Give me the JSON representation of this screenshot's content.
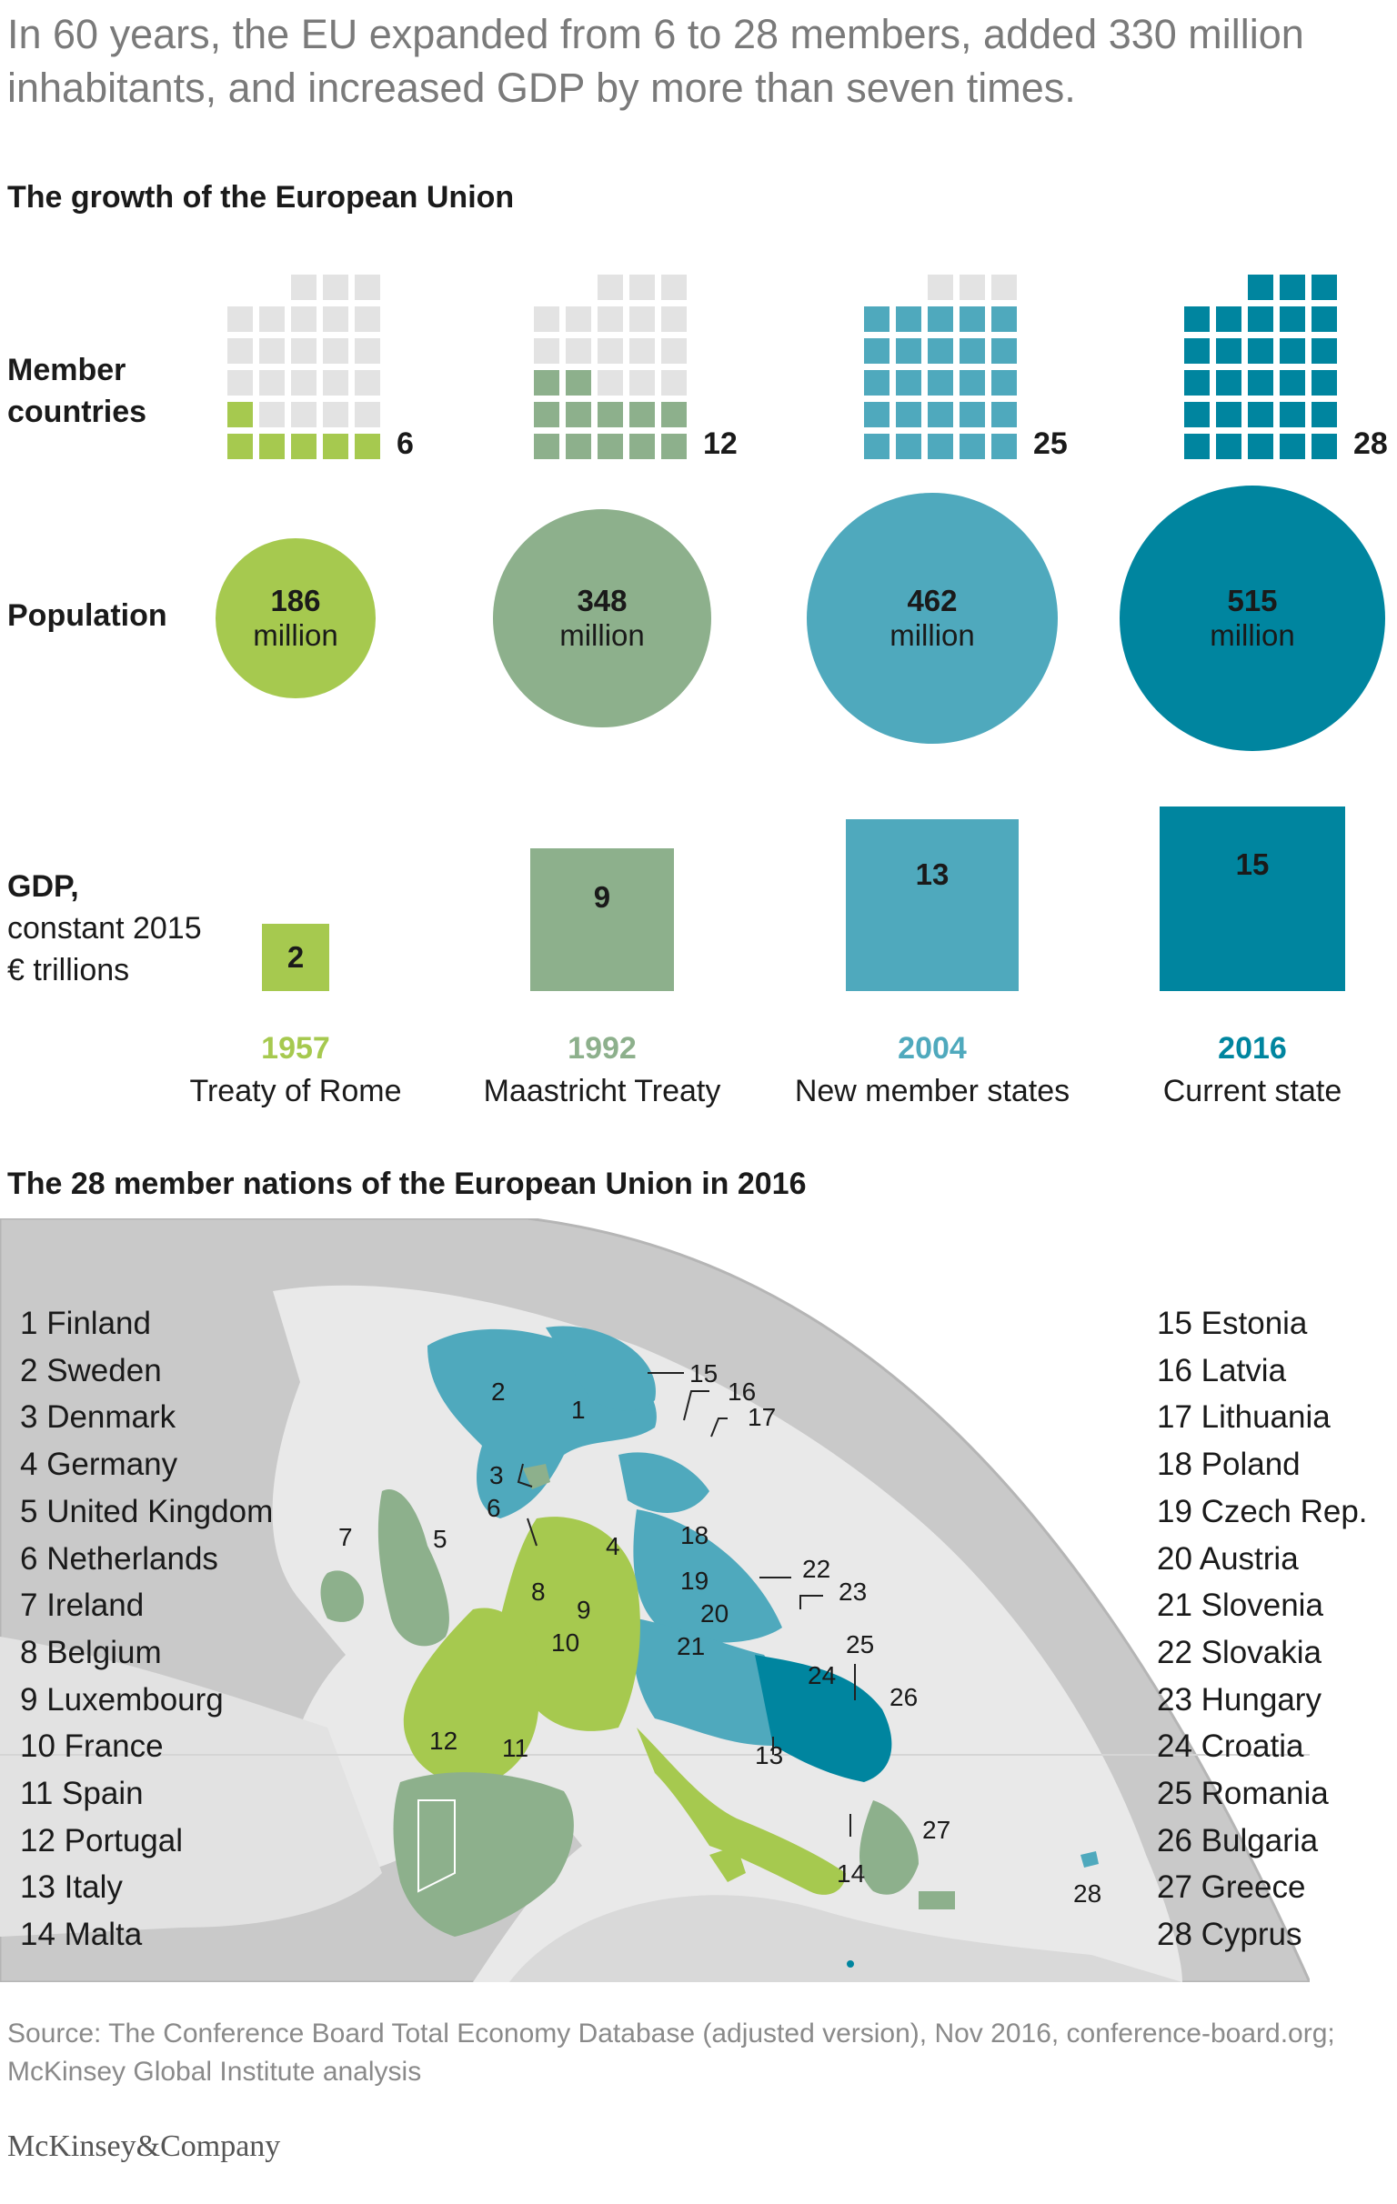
{
  "headline": "In 60 years, the EU expanded from 6 to 28 members, added 330 million inhabitants, and increased GDP by more than seven times.",
  "section1_title": "The growth of the European Union",
  "row_labels": {
    "members_line1": "Member",
    "members_line2": "countries",
    "population": "Population",
    "gdp_line1": "GDP,",
    "gdp_line2": "constant 2015",
    "gdp_line3": "€ trillions"
  },
  "population_unit": "million",
  "colors": {
    "1957": "#a6c94f",
    "1992": "#8db08c",
    "2004": "#4fa9bd",
    "2016": "#00859f",
    "empty_square": "#e3e3e3"
  },
  "chart_data": {
    "type": "table",
    "title": "The growth of the European Union",
    "columns": [
      {
        "year": "1957",
        "event": "Treaty of Rome",
        "members": 6,
        "members_label": "6",
        "population_million": 186,
        "population_label": "186",
        "gdp_trillions": 2,
        "gdp_label": "2",
        "color": "#a6c94f"
      },
      {
        "year": "1992",
        "event": "Maastricht Treaty",
        "members": 12,
        "members_label": "12",
        "population_million": 348,
        "population_label": "348",
        "gdp_trillions": 9,
        "gdp_label": "9",
        "color": "#8db08c"
      },
      {
        "year": "2004",
        "event": "New member states",
        "members": 25,
        "members_label": "25",
        "population_million": 462,
        "population_label": "462",
        "gdp_trillions": 13,
        "gdp_label": "13",
        "color": "#4fa9bd"
      },
      {
        "year": "2016",
        "event": "Current state",
        "members": 28,
        "members_label": "28",
        "population_million": 515,
        "population_label": "515",
        "gdp_trillions": 15,
        "gdp_label": "15",
        "color": "#00859f"
      }
    ]
  },
  "section2_title": "The 28 member nations of the European Union in 2016",
  "map_legend_left": [
    "1 Finland",
    "2 Sweden",
    "3 Denmark",
    "4 Germany",
    "5 United Kingdom",
    "6 Netherlands",
    "7 Ireland",
    "8 Belgium",
    "9 Luxembourg",
    "10 France",
    "11 Spain",
    "12 Portugal",
    "13 Italy",
    "14 Malta"
  ],
  "map_legend_right": [
    "15 Estonia",
    "16 Latvia",
    "17 Lithuania",
    "18 Poland",
    "19 Czech Rep.",
    "20 Austria",
    "21 Slovenia",
    "22 Slovakia",
    "23 Hungary",
    "24 Croatia",
    "25 Romania",
    "26 Bulgaria",
    "27 Greece",
    "28 Cyprus"
  ],
  "map_numbers": [
    "1",
    "2",
    "3",
    "4",
    "5",
    "6",
    "7",
    "8",
    "9",
    "10",
    "11",
    "12",
    "13",
    "14",
    "15",
    "16",
    "17",
    "18",
    "19",
    "20",
    "21",
    "22",
    "23",
    "24",
    "25",
    "26",
    "27",
    "28"
  ],
  "source": "Source: The Conference Board Total Economy Database (adjusted version), Nov 2016, conference-board.org; McKinsey Global Institute analysis",
  "brand": "McKinsey&Company"
}
